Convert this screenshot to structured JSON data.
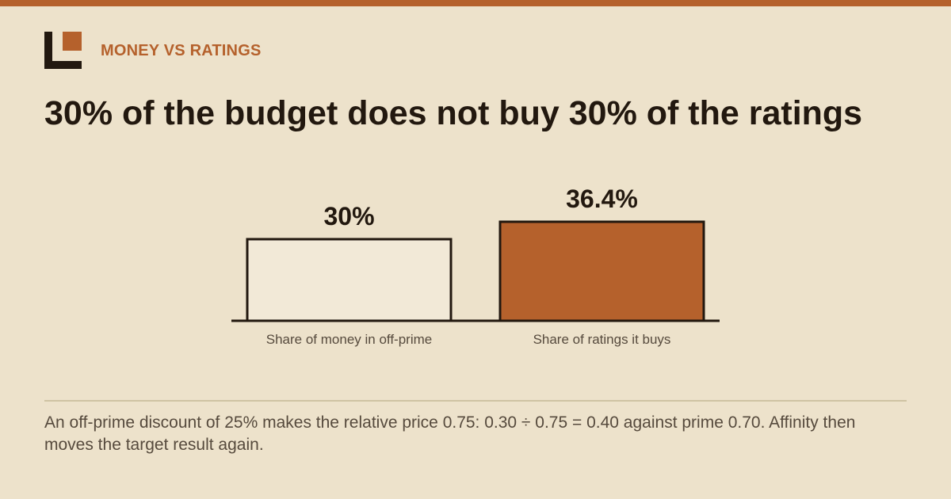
{
  "header": {
    "kicker": "MONEY VS RATINGS",
    "title": "30% of the budget does not buy 30% of the ratings"
  },
  "logo": {
    "icon": "corner-square-logo"
  },
  "colors": {
    "background": "#ede2cb",
    "accent": "#b5612c",
    "dark": "#22180f",
    "light_bar": "#f2e9d7"
  },
  "chart_data": {
    "type": "bar",
    "categories": [
      "Share of money in off-prime",
      "Share of ratings it buys"
    ],
    "values": [
      30,
      36.4
    ],
    "value_labels": [
      "30%",
      "36.4%"
    ],
    "bar_colors": [
      "#f2e9d7",
      "#b5612c"
    ],
    "title": "",
    "xlabel": "",
    "ylabel": "",
    "grid": false
  },
  "footnote": {
    "text": "An off-prime discount of 25% makes the relative price 0.75: 0.30 ÷ 0.75 = 0.40 against prime 0.70. Affinity then moves the target result again."
  }
}
